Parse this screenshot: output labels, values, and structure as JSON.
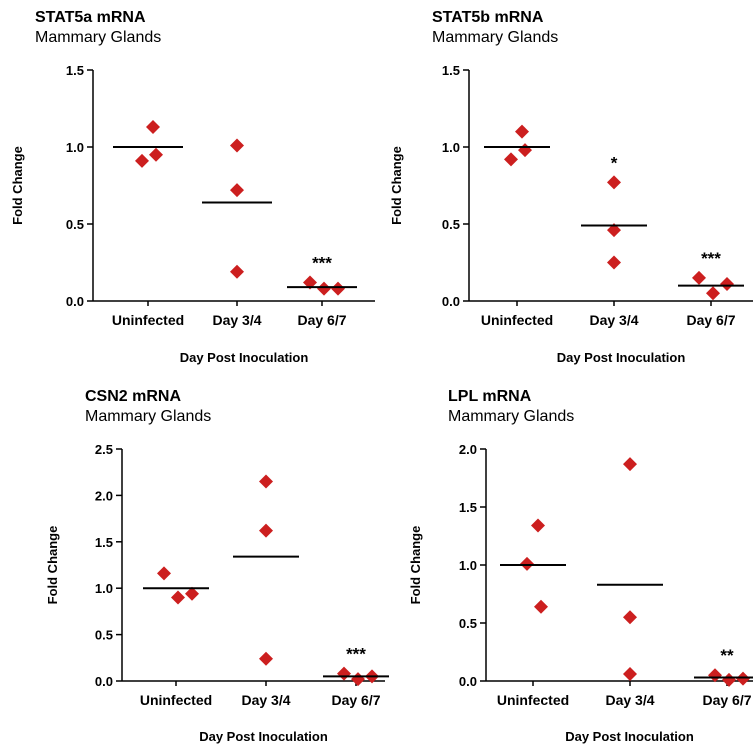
{
  "chart_data": [
    {
      "type": "scatter",
      "title": "STAT5a mRNA",
      "subtitle": "Mammary Glands",
      "xlabel": "Day Post Inoculation",
      "ylabel": "Fold Change",
      "categories": [
        "Uninfected",
        "Day 3/4",
        "Day 6/7"
      ],
      "yticks": [
        "0.0",
        "0.5",
        "1.0",
        "1.5"
      ],
      "ylim": [
        0,
        1.5
      ],
      "points": [
        [
          1.13,
          0.91,
          0.95
        ],
        [
          1.01,
          0.72,
          0.19
        ],
        [
          0.12,
          0.08,
          0.08
        ]
      ],
      "means": [
        1.0,
        0.64,
        0.09
      ],
      "significance": [
        "",
        "",
        "***"
      ],
      "marker_color": "#cc1f1f"
    },
    {
      "type": "scatter",
      "title": "STAT5b mRNA",
      "subtitle": "Mammary Glands",
      "xlabel": "Day Post Inoculation",
      "ylabel": "Fold Change",
      "categories": [
        "Uninfected",
        "Day 3/4",
        "Day 6/7"
      ],
      "yticks": [
        "0.0",
        "0.5",
        "1.0",
        "1.5"
      ],
      "ylim": [
        0,
        1.5
      ],
      "points": [
        [
          1.1,
          0.92,
          0.98
        ],
        [
          0.77,
          0.46,
          0.25
        ],
        [
          0.15,
          0.05,
          0.11
        ]
      ],
      "means": [
        1.0,
        0.49,
        0.1
      ],
      "significance": [
        "",
        "*",
        "***"
      ],
      "marker_color": "#cc1f1f"
    },
    {
      "type": "scatter",
      "title": "CSN2 mRNA",
      "subtitle": "Mammary Glands",
      "xlabel": "Day Post Inoculation",
      "ylabel": "Fold Change",
      "categories": [
        "Uninfected",
        "Day 3/4",
        "Day 6/7"
      ],
      "yticks": [
        "0.0",
        "0.5",
        "1.0",
        "1.5",
        "2.0",
        "2.5"
      ],
      "ylim": [
        0,
        2.5
      ],
      "points": [
        [
          1.16,
          0.9,
          0.94
        ],
        [
          2.15,
          1.62,
          0.24
        ],
        [
          0.08,
          0.02,
          0.05
        ]
      ],
      "means": [
        1.0,
        1.34,
        0.05
      ],
      "significance": [
        "",
        "",
        "***"
      ],
      "marker_color": "#cc1f1f"
    },
    {
      "type": "scatter",
      "title": "LPL mRNA",
      "subtitle": "Mammary Glands",
      "xlabel": "Day  Post  Inoculation",
      "ylabel": "Fold Change",
      "categories": [
        "Uninfected",
        "Day 3/4",
        "Day 6/7"
      ],
      "yticks": [
        "0.0",
        "0.5",
        "1.0",
        "1.5",
        "2.0"
      ],
      "ylim": [
        0,
        2.0
      ],
      "points": [
        [
          1.34,
          1.01,
          0.64
        ],
        [
          1.87,
          0.55,
          0.06
        ],
        [
          0.05,
          0.01,
          0.02
        ]
      ],
      "means": [
        1.0,
        0.83,
        0.03
      ],
      "significance": [
        "",
        "",
        "**"
      ],
      "marker_color": "#cc1f1f"
    }
  ]
}
